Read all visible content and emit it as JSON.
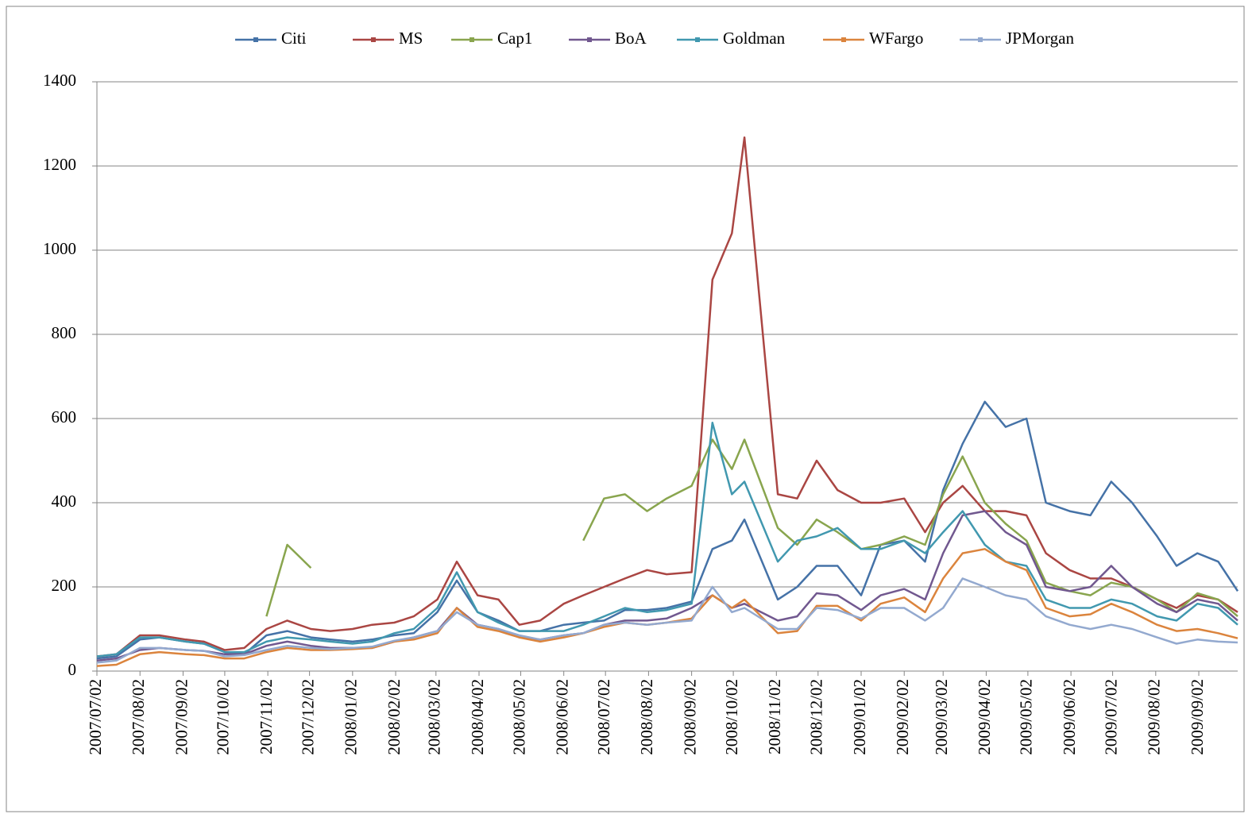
{
  "chart_data": {
    "type": "line",
    "x": [
      "2007/07/02",
      "2007/07/16",
      "2007/08/02",
      "2007/08/16",
      "2007/09/04",
      "2007/09/17",
      "2007/10/02",
      "2007/10/16",
      "2007/11/01",
      "2007/11/16",
      "2007/12/03",
      "2007/12/17",
      "2008/01/02",
      "2008/01/16",
      "2008/02/01",
      "2008/02/15",
      "2008/03/03",
      "2008/03/17",
      "2008/04/01",
      "2008/04/16",
      "2008/05/01",
      "2008/05/16",
      "2008/06/02",
      "2008/06/16",
      "2008/07/01",
      "2008/07/16",
      "2008/08/01",
      "2008/08/15",
      "2008/09/02",
      "2008/09/17",
      "2008/10/01",
      "2008/10/10",
      "2008/11/03",
      "2008/11/17",
      "2008/12/01",
      "2008/12/16",
      "2009/01/02",
      "2009/01/16",
      "2009/02/02",
      "2009/02/17",
      "2009/03/02",
      "2009/03/16",
      "2009/04/01",
      "2009/04/16",
      "2009/05/01",
      "2009/05/15",
      "2009/06/01",
      "2009/06/16",
      "2009/07/01",
      "2009/07/16",
      "2009/08/03",
      "2009/08/17",
      "2009/09/01",
      "2009/09/16",
      "2009/09/30"
    ],
    "series": [
      {
        "name": "Citi",
        "color": "#4572a7",
        "values": [
          30,
          35,
          75,
          80,
          70,
          65,
          45,
          40,
          85,
          95,
          80,
          75,
          70,
          75,
          85,
          90,
          140,
          215,
          140,
          120,
          95,
          95,
          110,
          115,
          120,
          145,
          145,
          150,
          165,
          290,
          310,
          360,
          170,
          200,
          250,
          250,
          180,
          300,
          310,
          260,
          430,
          540,
          640,
          580,
          600,
          400,
          380,
          370,
          450,
          400,
          320,
          250,
          280,
          260,
          190
        ]
      },
      {
        "name": "MS",
        "color": "#aa4643",
        "values": [
          35,
          40,
          85,
          85,
          75,
          70,
          50,
          55,
          100,
          120,
          100,
          95,
          100,
          110,
          115,
          130,
          170,
          260,
          180,
          170,
          110,
          120,
          160,
          180,
          200,
          220,
          240,
          230,
          235,
          930,
          1040,
          1268,
          420,
          410,
          500,
          430,
          400,
          400,
          410,
          330,
          400,
          440,
          380,
          380,
          370,
          280,
          240,
          220,
          220,
          200,
          170,
          150,
          180,
          170,
          140
        ]
      },
      {
        "name": "Cap1",
        "color": "#89a54e",
        "values": [
          null,
          null,
          null,
          null,
          null,
          null,
          null,
          null,
          130,
          300,
          245,
          null,
          null,
          null,
          null,
          null,
          null,
          null,
          null,
          null,
          null,
          null,
          null,
          310,
          410,
          420,
          380,
          410,
          440,
          550,
          480,
          550,
          340,
          300,
          360,
          330,
          290,
          300,
          320,
          300,
          420,
          510,
          400,
          350,
          310,
          210,
          190,
          180,
          210,
          200,
          170,
          140,
          185,
          170,
          130
        ]
      },
      {
        "name": "BoA",
        "color": "#71588f",
        "values": [
          25,
          30,
          50,
          55,
          50,
          48,
          40,
          40,
          60,
          70,
          60,
          55,
          55,
          55,
          70,
          80,
          95,
          150,
          110,
          100,
          80,
          75,
          85,
          90,
          110,
          120,
          120,
          125,
          150,
          180,
          150,
          160,
          120,
          130,
          185,
          180,
          145,
          180,
          195,
          170,
          280,
          370,
          380,
          330,
          300,
          200,
          190,
          200,
          250,
          200,
          160,
          140,
          170,
          160,
          120
        ]
      },
      {
        "name": "Goldman",
        "color": "#4198af",
        "values": [
          35,
          40,
          80,
          80,
          70,
          65,
          45,
          45,
          70,
          80,
          75,
          70,
          65,
          70,
          90,
          100,
          150,
          235,
          140,
          115,
          95,
          95,
          95,
          110,
          130,
          150,
          140,
          145,
          160,
          590,
          420,
          450,
          260,
          310,
          320,
          340,
          290,
          290,
          310,
          280,
          330,
          380,
          300,
          260,
          250,
          170,
          150,
          150,
          170,
          160,
          130,
          120,
          160,
          150,
          110
        ]
      },
      {
        "name": "WFargo",
        "color": "#db843d",
        "values": [
          12,
          15,
          40,
          45,
          40,
          38,
          30,
          30,
          45,
          55,
          50,
          50,
          52,
          55,
          70,
          75,
          90,
          150,
          105,
          95,
          80,
          70,
          80,
          90,
          105,
          115,
          110,
          115,
          125,
          180,
          150,
          170,
          90,
          95,
          155,
          155,
          120,
          160,
          175,
          140,
          220,
          280,
          290,
          260,
          240,
          150,
          130,
          135,
          160,
          140,
          110,
          95,
          100,
          90,
          78
        ]
      },
      {
        "name": "JPMorgan",
        "color": "#93a9cf",
        "values": [
          20,
          25,
          55,
          55,
          50,
          48,
          35,
          38,
          50,
          60,
          55,
          52,
          55,
          58,
          72,
          80,
          95,
          140,
          110,
          100,
          85,
          75,
          85,
          90,
          110,
          115,
          110,
          115,
          120,
          200,
          140,
          150,
          100,
          100,
          150,
          145,
          125,
          150,
          150,
          120,
          150,
          220,
          200,
          180,
          170,
          130,
          110,
          100,
          110,
          100,
          80,
          65,
          75,
          70,
          68
        ]
      }
    ],
    "xlim": [
      "2007/07/02",
      "2009/09/30"
    ],
    "xticks": [
      "2007/07/02",
      "2007/08/02",
      "2007/09/02",
      "2007/10/02",
      "2007/11/02",
      "2007/12/02",
      "2008/01/02",
      "2008/02/02",
      "2008/03/02",
      "2008/04/02",
      "2008/05/02",
      "2008/06/02",
      "2008/07/02",
      "2008/08/02",
      "2008/09/02",
      "2008/10/02",
      "2008/11/02",
      "2008/12/02",
      "2009/01/02",
      "2009/02/02",
      "2009/03/02",
      "2009/04/02",
      "2009/05/02",
      "2009/06/02",
      "2009/07/02",
      "2009/08/02",
      "2009/09/02"
    ],
    "ylim": [
      0,
      1400
    ],
    "yticks": [
      0,
      200,
      400,
      600,
      800,
      1000,
      1200,
      1400
    ],
    "grid": true,
    "legend": "top"
  }
}
